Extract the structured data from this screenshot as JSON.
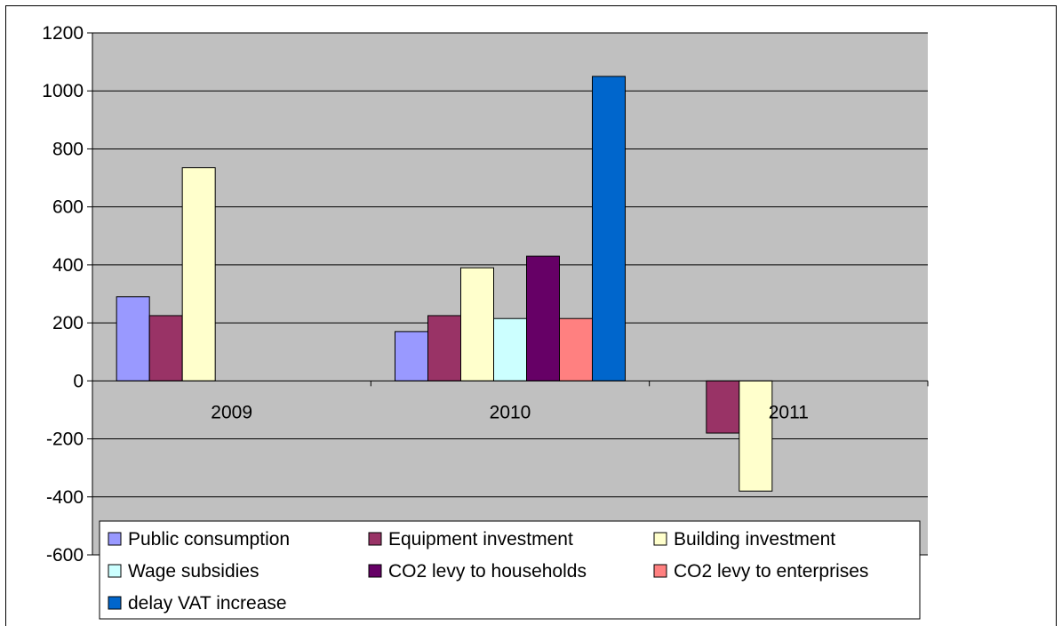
{
  "chart_data": {
    "type": "bar",
    "title": "",
    "xlabel": "",
    "ylabel": "",
    "categories": [
      "2009",
      "2010",
      "2011"
    ],
    "ylim": [
      -600,
      1200
    ],
    "yticks": [
      -600,
      -400,
      -200,
      0,
      200,
      400,
      600,
      800,
      1000,
      1200
    ],
    "ytick_labels": [
      "-600",
      "-400",
      "-200",
      "0",
      "200",
      "400",
      "600",
      "800",
      "1000",
      "1200"
    ],
    "grid": true,
    "legend_position": "bottom-inside",
    "plot_background": "#c0c0c0",
    "series": [
      {
        "name": "Public consumption",
        "color": "#9999ff",
        "values": [
          290,
          170,
          0
        ]
      },
      {
        "name": "Equipment investment",
        "color": "#993366",
        "values": [
          225,
          225,
          -180
        ]
      },
      {
        "name": "Building investment",
        "color": "#ffffcc",
        "values": [
          735,
          390,
          -380
        ]
      },
      {
        "name": "Wage subsidies",
        "color": "#ccffff",
        "values": [
          0,
          215,
          0
        ]
      },
      {
        "name": "CO2 levy to households",
        "color": "#660066",
        "values": [
          0,
          430,
          0
        ]
      },
      {
        "name": "CO2 levy to enterprises",
        "color": "#ff8080",
        "values": [
          0,
          215,
          0
        ]
      },
      {
        "name": "delay VAT increase",
        "color": "#0066cc",
        "values": [
          0,
          1050,
          0
        ]
      }
    ]
  }
}
